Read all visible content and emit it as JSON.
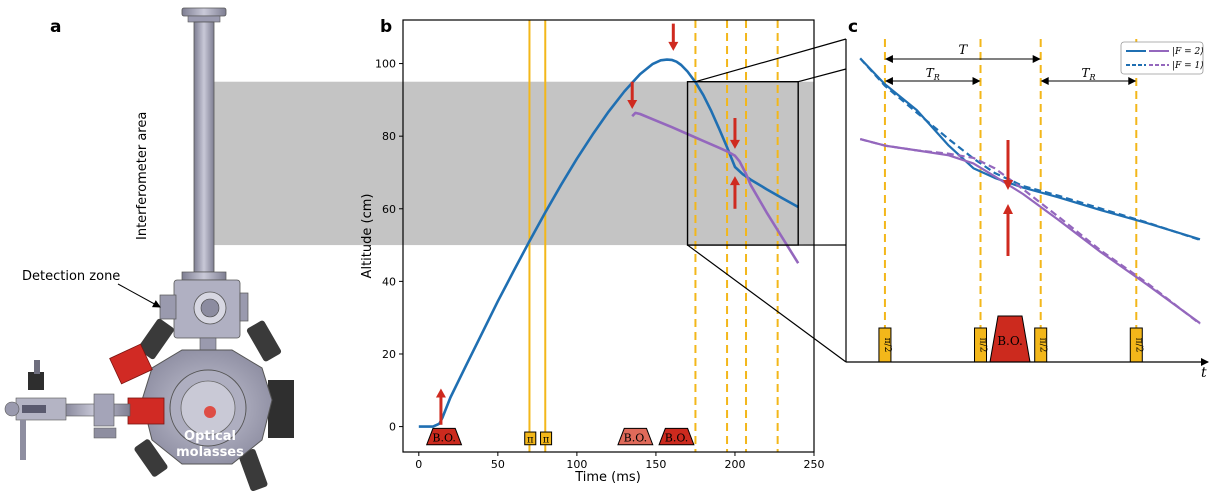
{
  "panels": {
    "a": {
      "letter": "a",
      "interferometer_label": "Interferometer area",
      "detection_label": "Detection zone",
      "molasses_line1": "Optical",
      "molasses_line2": "molasses"
    },
    "b": {
      "letter": "b"
    },
    "c": {
      "letter": "c"
    }
  },
  "colors": {
    "blue": "#1f6fb2",
    "purple": "#9467bd",
    "yellow": "#f3b71a",
    "red_pulse": "#cc2a1e",
    "red_pulse_light": "#e06a5a",
    "arrow_red": "#cf2a1f",
    "shade": "#c4c4c4",
    "chamber": "#a8a8ba"
  },
  "chart_data": [
    {
      "id": "b",
      "type": "line",
      "title": "",
      "xlabel": "Time (ms)",
      "ylabel": "Altitude (cm)",
      "xlim": [
        -10,
        250
      ],
      "ylim": [
        -7,
        112
      ],
      "xticks": [
        0,
        50,
        100,
        150,
        200,
        250
      ],
      "yticks": [
        0,
        20,
        40,
        60,
        80,
        100
      ],
      "shaded_band": [
        50,
        95
      ],
      "series": [
        {
          "color": "blue",
          "x": [
            0,
            9,
            13,
            15,
            20,
            30,
            40,
            50,
            60,
            70,
            80,
            90,
            100,
            110,
            120,
            130,
            140,
            148,
            153,
            157,
            160,
            163,
            166,
            170,
            175,
            180,
            185,
            190,
            195,
            200,
            205,
            210,
            220,
            230,
            240
          ],
          "y": [
            0,
            0,
            0.8,
            2.5,
            8,
            16.9,
            25.7,
            34.5,
            42.9,
            51.1,
            59,
            66.6,
            73.8,
            80.5,
            86.7,
            92.3,
            97.1,
            99.9,
            100.9,
            101.1,
            101,
            100.5,
            99.6,
            97.8,
            94.9,
            91.3,
            86.9,
            82,
            76.9,
            71.5,
            69.5,
            68,
            65.4,
            62.9,
            60.5
          ]
        },
        {
          "color": "purple",
          "x": [
            135,
            137,
            140,
            150,
            160,
            170,
            180,
            190,
            196,
            200,
            203,
            207,
            210,
            220,
            230,
            240
          ],
          "y": [
            85.5,
            86.4,
            86.1,
            84.3,
            82.5,
            80.6,
            78.7,
            76.8,
            75.6,
            74.6,
            73,
            69.6,
            66.5,
            59,
            52,
            45
          ]
        }
      ],
      "vlines_solid": [
        70,
        80
      ],
      "vlines_dashed": [
        175,
        195,
        207,
        227
      ],
      "zoom_box": {
        "x": [
          170,
          240
        ],
        "y": [
          50,
          95
        ]
      },
      "pulses": [
        {
          "label": "B.O.",
          "x0": 5,
          "x1": 27,
          "style": "dark"
        },
        {
          "label": "π",
          "x0": 67,
          "x1": 74,
          "style": "yellow"
        },
        {
          "label": "π",
          "x0": 77,
          "x1": 84,
          "style": "yellow"
        },
        {
          "label": "B.O.",
          "x0": 126,
          "x1": 148,
          "style": "light"
        },
        {
          "label": "B.O.",
          "x0": 152,
          "x1": 174,
          "style": "dark"
        }
      ],
      "arrows": [
        {
          "x": 14,
          "y_from": 0.5,
          "y_to": 10.5
        },
        {
          "x": 161,
          "y_from": 111,
          "y_to": 103.5
        },
        {
          "x": 135,
          "y_from": 95,
          "y_to": 87.5
        },
        {
          "x": 200,
          "y_from": 85,
          "y_to": 76.5
        },
        {
          "x": 200,
          "y_from": 60,
          "y_to": 69
        }
      ]
    },
    {
      "id": "c",
      "type": "line",
      "xlabel": "t",
      "xlim": [
        0,
        1
      ],
      "ylim": [
        0,
        1
      ],
      "legend": {
        "entries": [
          "|F = 2⟩",
          "|F = 1⟩"
        ],
        "position": "top-right"
      },
      "annotations": {
        "T_label": "T",
        "TR_label": "T",
        "TR_sub": "R"
      },
      "pulse_label": "B.O.",
      "halfpi_num": "π",
      "halfpi_den": "2",
      "series": [
        {
          "name": "|F = 2⟩",
          "color": "blue",
          "dashed": false,
          "x": [
            0.04,
            0.11,
            0.2,
            0.29,
            0.36,
            0.42,
            0.5,
            0.6,
            0.72,
            0.85,
            1.0
          ],
          "y": [
            0.94,
            0.86,
            0.78,
            0.67,
            0.6,
            0.57,
            0.54,
            0.51,
            0.47,
            0.43,
            0.38
          ]
        },
        {
          "color": "blue",
          "dashed": true,
          "x": [
            0.04,
            0.11,
            0.2,
            0.29,
            0.36,
            0.42,
            0.5,
            0.6,
            0.72,
            0.85,
            1.0
          ],
          "y": [
            0.94,
            0.855,
            0.772,
            0.69,
            0.63,
            0.585,
            0.545,
            0.515,
            0.475,
            0.432,
            0.378
          ]
        },
        {
          "name": "|F = 1⟩",
          "color": "purple",
          "dashed": false,
          "x": [
            0.04,
            0.11,
            0.2,
            0.29,
            0.36,
            0.42,
            0.5,
            0.6,
            0.72,
            0.85,
            1.0
          ],
          "y": [
            0.69,
            0.67,
            0.655,
            0.64,
            0.615,
            0.575,
            0.52,
            0.44,
            0.34,
            0.24,
            0.12
          ]
        },
        {
          "color": "purple",
          "dashed": true,
          "x": [
            0.04,
            0.11,
            0.2,
            0.29,
            0.36,
            0.42,
            0.5,
            0.6,
            0.72,
            0.85,
            1.0
          ],
          "y": [
            0.69,
            0.67,
            0.655,
            0.645,
            0.632,
            0.6,
            0.535,
            0.45,
            0.345,
            0.245,
            0.118
          ]
        }
      ]
    }
  ]
}
